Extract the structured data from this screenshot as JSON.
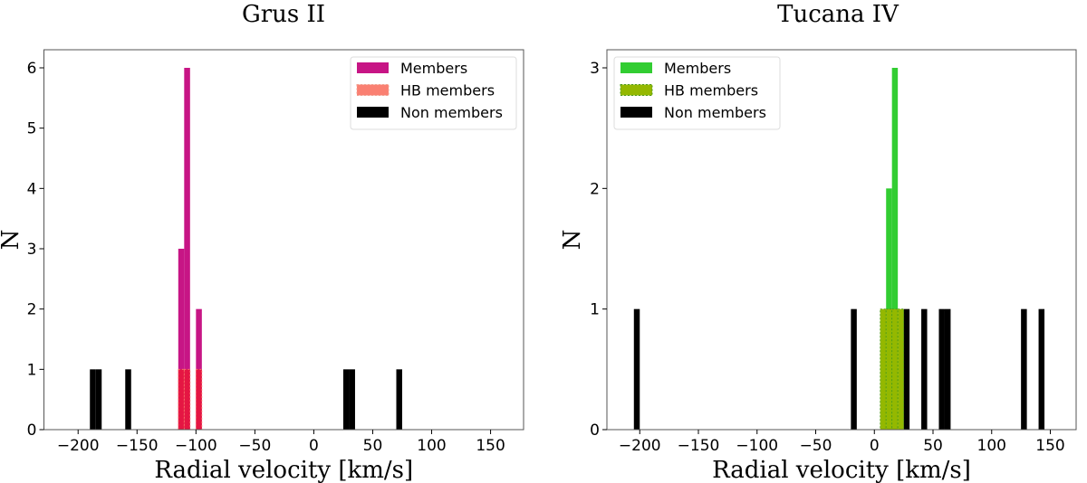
{
  "chart_data": [
    {
      "type": "bar",
      "title": "Grus II",
      "xlabel": "Radial velocity [km/s]",
      "ylabel": "N",
      "xlim": [
        -229,
        178
      ],
      "ylim": [
        0,
        6.3
      ],
      "xticks": [
        -200,
        -150,
        -100,
        -50,
        0,
        50,
        100,
        150
      ],
      "yticks": [
        0,
        1,
        2,
        3,
        4,
        5,
        6
      ],
      "grid": false,
      "legend_position": "top-right",
      "series": [
        {
          "name": "Members",
          "color": "#C71585",
          "bins": [
            [
              -115,
              -110,
              3
            ],
            [
              -110,
              -105,
              6
            ],
            [
              -100,
              -95,
              2
            ]
          ]
        },
        {
          "name": "HB members",
          "color": "#FA8072",
          "render_color": "#E8163C",
          "bins": [
            [
              -115,
              -110,
              1
            ],
            [
              -110,
              -105,
              1
            ],
            [
              -100,
              -95,
              1
            ]
          ]
        },
        {
          "name": "Non members",
          "color": "#000000",
          "bins": [
            [
              -190,
              -185,
              1
            ],
            [
              -185,
              -180,
              1
            ],
            [
              -160,
              -155,
              1
            ],
            [
              25,
              30,
              1
            ],
            [
              30,
              35,
              1
            ],
            [
              70,
              75,
              1
            ]
          ]
        }
      ]
    },
    {
      "type": "bar",
      "title": "Tucana IV",
      "xlabel": "Radial velocity [km/s]",
      "ylabel": "N",
      "xlim": [
        -228,
        172
      ],
      "ylim": [
        0,
        3.15
      ],
      "xticks": [
        -200,
        -150,
        -100,
        -50,
        0,
        50,
        100,
        150
      ],
      "yticks": [
        0,
        1,
        2,
        3
      ],
      "grid": false,
      "legend_position": "top-left",
      "series": [
        {
          "name": "Members",
          "color": "#32CD32",
          "bins": [
            [
              10,
              15,
              2
            ],
            [
              15,
              20,
              3
            ]
          ]
        },
        {
          "name": "HB members",
          "color": "#94B800",
          "bins": [
            [
              5,
              10,
              1
            ],
            [
              10,
              15,
              1
            ],
            [
              15,
              20,
              1
            ],
            [
              20,
              25,
              1
            ]
          ]
        },
        {
          "name": "Non members",
          "color": "#000000",
          "bins": [
            [
              -205,
              -200,
              1
            ],
            [
              -20,
              -15,
              1
            ],
            [
              25,
              30,
              1
            ],
            [
              40,
              45,
              1
            ],
            [
              55,
              60,
              1
            ],
            [
              60,
              65,
              1
            ],
            [
              125,
              130,
              1
            ],
            [
              140,
              145,
              1
            ]
          ]
        }
      ]
    }
  ]
}
